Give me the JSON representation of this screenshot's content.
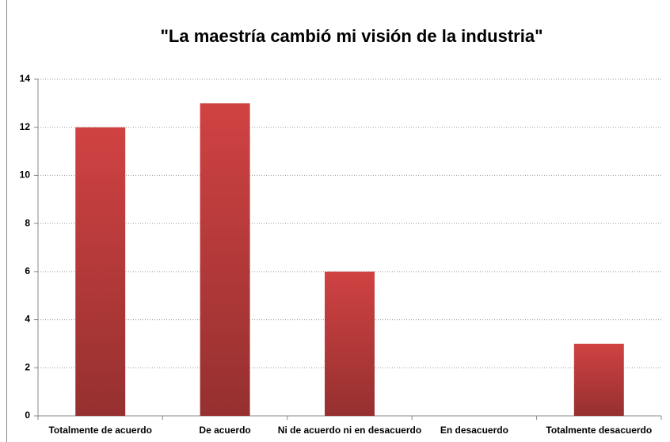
{
  "chart_data": {
    "type": "bar",
    "title": "\"La maestría cambió mi visión de la industria\"",
    "categories": [
      "Totalmente de acuerdo",
      "De acuerdo",
      "Ni de acuerdo ni en desacuerdo",
      "En desacuerdo",
      "Totalmente desacuerdo"
    ],
    "values": [
      12,
      13,
      6,
      0,
      3
    ],
    "color": "#d04242",
    "ylim": [
      0,
      14
    ],
    "yticks": [
      0,
      2,
      4,
      6,
      8,
      10,
      12,
      14
    ],
    "grid": true
  }
}
